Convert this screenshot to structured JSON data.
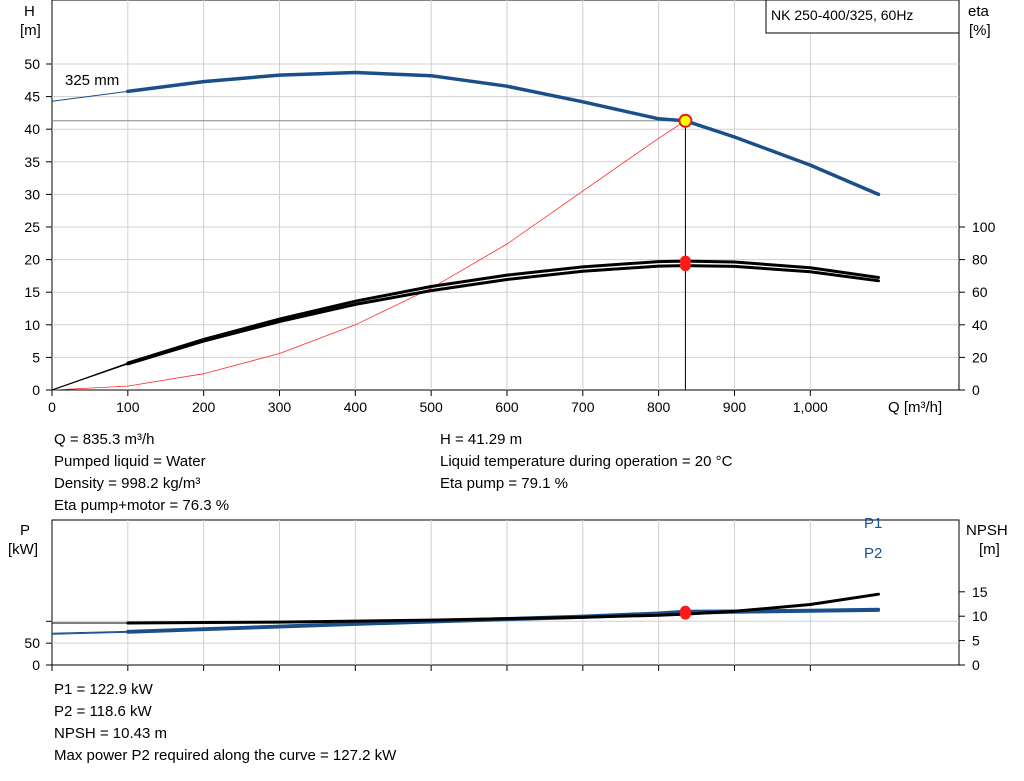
{
  "chart_data": [
    {
      "type": "line",
      "title": "NK 250-400/325, 60Hz",
      "xlabel": "Q [m³/h]",
      "ylabel_left": [
        "H",
        "[m]"
      ],
      "ylabel_right": [
        "eta",
        "[%]"
      ],
      "xlim": [
        0,
        1090
      ],
      "ylim_left": [
        0,
        50
      ],
      "ylim_right": [
        0,
        100
      ],
      "x_ticks": [
        0,
        100,
        200,
        300,
        400,
        500,
        600,
        700,
        800,
        900,
        1000
      ],
      "x_tick_labels": [
        "0",
        "100",
        "200",
        "300",
        "400",
        "500",
        "600",
        "700",
        "800",
        "900",
        "1,000"
      ],
      "y_left_ticks": [
        0,
        5,
        10,
        15,
        20,
        25,
        30,
        35,
        40,
        45,
        50
      ],
      "y_right_ticks": [
        0,
        20,
        40,
        60,
        80,
        100
      ],
      "grid": true,
      "annotations": [
        {
          "text": "325 mm"
        }
      ],
      "operating_point": {
        "x": 835.3,
        "y": 41.29
      },
      "series": [
        {
          "axis": "left",
          "color": "#1a4f8a",
          "x": [
            0,
            100,
            200,
            300,
            400,
            500,
            600,
            700,
            800,
            835.3,
            900,
            1000,
            1090
          ],
          "values": [
            44.3,
            45.8,
            47.3,
            48.3,
            48.7,
            48.2,
            46.6,
            44.2,
            41.6,
            41.29,
            38.8,
            34.5,
            30.0
          ]
        },
        {
          "axis": "right",
          "color": "#000000",
          "x": [
            0,
            100,
            200,
            300,
            400,
            500,
            600,
            700,
            800,
            835.3,
            900,
            1000,
            1090
          ],
          "values": [
            0,
            16.5,
            31.0,
            43.5,
            54.5,
            63.5,
            70.5,
            75.5,
            78.8,
            79.1,
            78.5,
            75.0,
            69.0
          ]
        },
        {
          "axis": "right",
          "color": "#000000",
          "x": [
            0,
            100,
            200,
            300,
            400,
            500,
            600,
            700,
            800,
            835.3,
            900,
            1000,
            1090
          ],
          "values": [
            0,
            16.0,
            30.0,
            42.0,
            52.5,
            61.0,
            67.8,
            72.8,
            76.0,
            76.3,
            75.8,
            72.5,
            67.0
          ]
        },
        {
          "axis": "left",
          "color": "#ff2a2a",
          "x": [
            0,
            100,
            200,
            300,
            400,
            500,
            600,
            700,
            800,
            835.3
          ],
          "values": [
            0,
            0.6,
            2.5,
            5.6,
            10.0,
            15.6,
            22.4,
            30.5,
            38.6,
            41.29
          ]
        }
      ]
    },
    {
      "type": "line",
      "ylabel_left": [
        "P",
        "[kW]"
      ],
      "ylabel_right": [
        "NPSH",
        "[m]"
      ],
      "xlim": [
        0,
        1090
      ],
      "ylim_left": [
        0,
        150
      ],
      "ylim_right": [
        0,
        30
      ],
      "y_left_ticks": [
        0,
        50
      ],
      "y_right_ticks": [
        0,
        5,
        10,
        15
      ],
      "grid": true,
      "series": [
        {
          "name": "P1",
          "axis": "left",
          "color": "#1a4f8a",
          "x": [
            0,
            100,
            200,
            300,
            400,
            500,
            600,
            700,
            800,
            835.3,
            900,
            1000,
            1090
          ],
          "values": [
            72.5,
            77.0,
            83.0,
            89.0,
            95.0,
            101.0,
            106.5,
            112.0,
            119.0,
            122.9,
            123.5,
            125.5,
            127.5
          ]
        },
        {
          "name": "P2",
          "axis": "left",
          "color": "#1a4f8a",
          "x": [
            0,
            100,
            200,
            300,
            400,
            500,
            600,
            700,
            800,
            835.3,
            900,
            1000,
            1090
          ],
          "values": [
            70.5,
            75.0,
            81.0,
            87.0,
            93.0,
            98.5,
            104.0,
            109.0,
            115.5,
            118.6,
            120.5,
            123.0,
            125.0
          ]
        },
        {
          "name": "NPSH",
          "axis": "right",
          "color": "#000000",
          "x": [
            0,
            100,
            200,
            300,
            400,
            500,
            600,
            700,
            800,
            835.3,
            900,
            1000,
            1090
          ],
          "values": [
            8.6,
            8.6,
            8.7,
            8.8,
            9.0,
            9.2,
            9.5,
            9.8,
            10.2,
            10.43,
            11.0,
            12.4,
            14.5
          ]
        }
      ],
      "operating_points": [
        {
          "series": "P1",
          "x": 835.3,
          "y": 122.9
        },
        {
          "series": "P2",
          "x": 835.3,
          "y": 118.6
        },
        {
          "series": "NPSH",
          "x": 835.3,
          "y": 10.43
        }
      ]
    }
  ],
  "info_top_left": [
    "Q = 835.3 m³/h",
    "Pumped liquid = Water",
    "Density = 998.2 kg/m³",
    "Eta pump+motor = 76.3 %"
  ],
  "info_top_right": [
    "H = 41.29 m",
    "Liquid temperature during operation = 20 °C",
    "Eta pump = 79.1 %"
  ],
  "info_bottom": [
    "P1 = 122.9 kW",
    "P2 = 118.6 kW",
    "NPSH = 10.43 m",
    "Max power P2 required along the curve = 127.2 kW"
  ]
}
